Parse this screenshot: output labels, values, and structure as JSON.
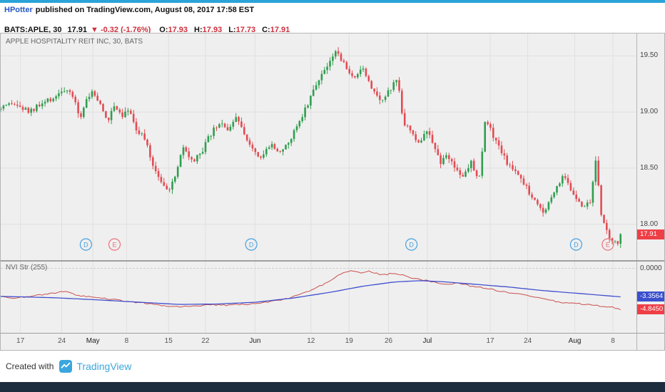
{
  "attribution": {
    "author": "HPotter",
    "rest": "published on TradingView.com, August 08, 2017 17:58 EST"
  },
  "symbol_row": {
    "symbol": "BATS:APLE, 30",
    "last": "17.91",
    "change": "▼ -0.32 (-1.76%)",
    "ohlc": [
      {
        "label": "O:",
        "value": "17.93"
      },
      {
        "label": "H:",
        "value": "17.93"
      },
      {
        "label": "L:",
        "value": "17.73"
      },
      {
        "label": "C:",
        "value": "17.91"
      }
    ]
  },
  "footer": {
    "created_with": "Created with",
    "brand": "TradingView"
  },
  "colors": {
    "up": "#2f9e4f",
    "down": "#e24c54",
    "nvi_line": "#c9504c",
    "signal_line": "#4150d0",
    "tag_red": "#ef3e46",
    "tag_blue": "#3b50ce",
    "marker_d": "#45a1e0",
    "marker_e": "#ee707a",
    "grid": "#e0e0e0",
    "accent_teal": "#2aa3d8",
    "link_blue": "#2457c5",
    "value_red": "#cc2f3c",
    "brand_blue": "#3ba6dd",
    "bottom_bar": "#1e2d3d"
  },
  "chart_data": [
    {
      "type": "candlestick",
      "legend": "APPLE HOSPITALITY REIT INC, 30, BATS",
      "ylim": [
        17.68,
        19.7
      ],
      "yticks": [
        19.5,
        19.0,
        18.5,
        18.0
      ],
      "ytick_labels": [
        "19.50",
        "19.00",
        "18.50",
        "18.00"
      ],
      "last": 17.91,
      "last_label": "17.91",
      "open": 17.93,
      "high": 17.93,
      "low": 17.73,
      "close": 17.91,
      "price_path": [
        [
          0.0,
          19.02
        ],
        [
          0.02,
          19.07
        ],
        [
          0.045,
          19.0
        ],
        [
          0.075,
          19.1
        ],
        [
          0.1,
          19.2
        ],
        [
          0.115,
          19.12
        ],
        [
          0.125,
          18.95
        ],
        [
          0.135,
          19.12
        ],
        [
          0.145,
          19.18
        ],
        [
          0.158,
          19.05
        ],
        [
          0.168,
          18.9
        ],
        [
          0.178,
          19.08
        ],
        [
          0.19,
          18.97
        ],
        [
          0.2,
          19.04
        ],
        [
          0.212,
          18.86
        ],
        [
          0.225,
          18.78
        ],
        [
          0.24,
          18.52
        ],
        [
          0.255,
          18.37
        ],
        [
          0.265,
          18.28
        ],
        [
          0.275,
          18.45
        ],
        [
          0.287,
          18.68
        ],
        [
          0.3,
          18.55
        ],
        [
          0.315,
          18.62
        ],
        [
          0.33,
          18.8
        ],
        [
          0.345,
          18.9
        ],
        [
          0.36,
          18.84
        ],
        [
          0.372,
          18.95
        ],
        [
          0.385,
          18.8
        ],
        [
          0.398,
          18.66
        ],
        [
          0.412,
          18.6
        ],
        [
          0.425,
          18.74
        ],
        [
          0.438,
          18.64
        ],
        [
          0.452,
          18.7
        ],
        [
          0.465,
          18.88
        ],
        [
          0.482,
          19.06
        ],
        [
          0.5,
          19.3
        ],
        [
          0.515,
          19.42
        ],
        [
          0.53,
          19.55
        ],
        [
          0.545,
          19.35
        ],
        [
          0.558,
          19.28
        ],
        [
          0.57,
          19.4
        ],
        [
          0.582,
          19.24
        ],
        [
          0.6,
          19.1
        ],
        [
          0.615,
          19.22
        ],
        [
          0.625,
          19.3
        ],
        [
          0.633,
          18.92
        ],
        [
          0.645,
          18.82
        ],
        [
          0.658,
          18.7
        ],
        [
          0.668,
          18.86
        ],
        [
          0.68,
          18.7
        ],
        [
          0.692,
          18.56
        ],
        [
          0.703,
          18.62
        ],
        [
          0.715,
          18.5
        ],
        [
          0.728,
          18.42
        ],
        [
          0.74,
          18.56
        ],
        [
          0.752,
          18.4
        ],
        [
          0.763,
          18.96
        ],
        [
          0.775,
          18.76
        ],
        [
          0.79,
          18.62
        ],
        [
          0.802,
          18.5
        ],
        [
          0.815,
          18.46
        ],
        [
          0.83,
          18.3
        ],
        [
          0.842,
          18.2
        ],
        [
          0.855,
          18.08
        ],
        [
          0.865,
          18.26
        ],
        [
          0.875,
          18.32
        ],
        [
          0.886,
          18.44
        ],
        [
          0.898,
          18.3
        ],
        [
          0.908,
          18.2
        ],
        [
          0.918,
          18.14
        ],
        [
          0.928,
          18.22
        ],
        [
          0.936,
          18.58
        ],
        [
          0.944,
          18.1
        ],
        [
          0.952,
          17.95
        ],
        [
          0.962,
          17.86
        ],
        [
          0.97,
          17.8
        ],
        [
          0.975,
          17.91
        ]
      ],
      "markers": [
        {
          "label": "D",
          "kind": "dividend",
          "x": 0.134
        },
        {
          "label": "E",
          "kind": "earnings",
          "x": 0.179
        },
        {
          "label": "D",
          "kind": "dividend",
          "x": 0.394
        },
        {
          "label": "D",
          "kind": "dividend",
          "x": 0.646
        },
        {
          "label": "D",
          "kind": "dividend",
          "x": 0.905
        },
        {
          "label": "E",
          "kind": "earnings",
          "x": 0.955
        }
      ],
      "x_axis": [
        {
          "label": "17",
          "x": 0.031,
          "major": false
        },
        {
          "label": "24",
          "x": 0.096,
          "major": false
        },
        {
          "label": "May",
          "x": 0.145,
          "major": true
        },
        {
          "label": "8",
          "x": 0.198,
          "major": false
        },
        {
          "label": "15",
          "x": 0.264,
          "major": false
        },
        {
          "label": "22",
          "x": 0.322,
          "major": false
        },
        {
          "label": "Jun",
          "x": 0.4,
          "major": true
        },
        {
          "label": "12",
          "x": 0.488,
          "major": false
        },
        {
          "label": "19",
          "x": 0.548,
          "major": false
        },
        {
          "label": "26",
          "x": 0.61,
          "major": false
        },
        {
          "label": "Jul",
          "x": 0.671,
          "major": true
        },
        {
          "label": "17",
          "x": 0.77,
          "major": false
        },
        {
          "label": "24",
          "x": 0.829,
          "major": false
        },
        {
          "label": "Aug",
          "x": 0.903,
          "major": true
        },
        {
          "label": "8",
          "x": 0.963,
          "major": false
        }
      ]
    },
    {
      "type": "line",
      "legend": "NVI Str (255)",
      "ylim": [
        -7.6,
        0.8
      ],
      "labels": {
        "zero": "0.0000",
        "signal": "-3.3564",
        "last": "-4.8450"
      },
      "zero_value": 0.0,
      "signal_value": -3.3564,
      "last_value": -4.845,
      "series": [
        {
          "name": "NVI",
          "color": "#c9504c",
          "path": [
            [
              0.0,
              -3.3
            ],
            [
              0.02,
              -3.5
            ],
            [
              0.05,
              -3.25
            ],
            [
              0.08,
              -2.95
            ],
            [
              0.1,
              -2.7
            ],
            [
              0.12,
              -3.15
            ],
            [
              0.15,
              -3.45
            ],
            [
              0.18,
              -3.7
            ],
            [
              0.21,
              -4.0
            ],
            [
              0.24,
              -4.2
            ],
            [
              0.27,
              -4.55
            ],
            [
              0.3,
              -4.45
            ],
            [
              0.33,
              -4.3
            ],
            [
              0.36,
              -4.35
            ],
            [
              0.39,
              -4.2
            ],
            [
              0.42,
              -4.0
            ],
            [
              0.45,
              -3.6
            ],
            [
              0.47,
              -3.1
            ],
            [
              0.49,
              -2.5
            ],
            [
              0.51,
              -1.8
            ],
            [
              0.53,
              -0.9
            ],
            [
              0.55,
              -0.2
            ],
            [
              0.565,
              -0.55
            ],
            [
              0.58,
              -0.35
            ],
            [
              0.6,
              -0.8
            ],
            [
              0.62,
              -0.55
            ],
            [
              0.64,
              -1.0
            ],
            [
              0.66,
              -1.3
            ],
            [
              0.68,
              -1.6
            ],
            [
              0.7,
              -1.9
            ],
            [
              0.72,
              -1.7
            ],
            [
              0.74,
              -2.1
            ],
            [
              0.76,
              -2.3
            ],
            [
              0.78,
              -2.6
            ],
            [
              0.8,
              -2.9
            ],
            [
              0.82,
              -3.1
            ],
            [
              0.84,
              -3.4
            ],
            [
              0.86,
              -3.7
            ],
            [
              0.88,
              -4.0
            ],
            [
              0.9,
              -4.1
            ],
            [
              0.92,
              -4.25
            ],
            [
              0.94,
              -4.4
            ],
            [
              0.96,
              -4.55
            ],
            [
              0.975,
              -4.845
            ]
          ]
        },
        {
          "name": "Signal",
          "color": "#4150d0",
          "path": [
            [
              0.0,
              -3.3
            ],
            [
              0.08,
              -3.45
            ],
            [
              0.15,
              -3.7
            ],
            [
              0.22,
              -4.0
            ],
            [
              0.28,
              -4.25
            ],
            [
              0.34,
              -4.2
            ],
            [
              0.4,
              -4.0
            ],
            [
              0.46,
              -3.5
            ],
            [
              0.52,
              -2.8
            ],
            [
              0.57,
              -2.1
            ],
            [
              0.62,
              -1.6
            ],
            [
              0.66,
              -1.45
            ],
            [
              0.7,
              -1.6
            ],
            [
              0.75,
              -1.9
            ],
            [
              0.8,
              -2.2
            ],
            [
              0.85,
              -2.6
            ],
            [
              0.9,
              -2.9
            ],
            [
              0.95,
              -3.2
            ],
            [
              0.975,
              -3.3564
            ]
          ]
        }
      ]
    }
  ]
}
